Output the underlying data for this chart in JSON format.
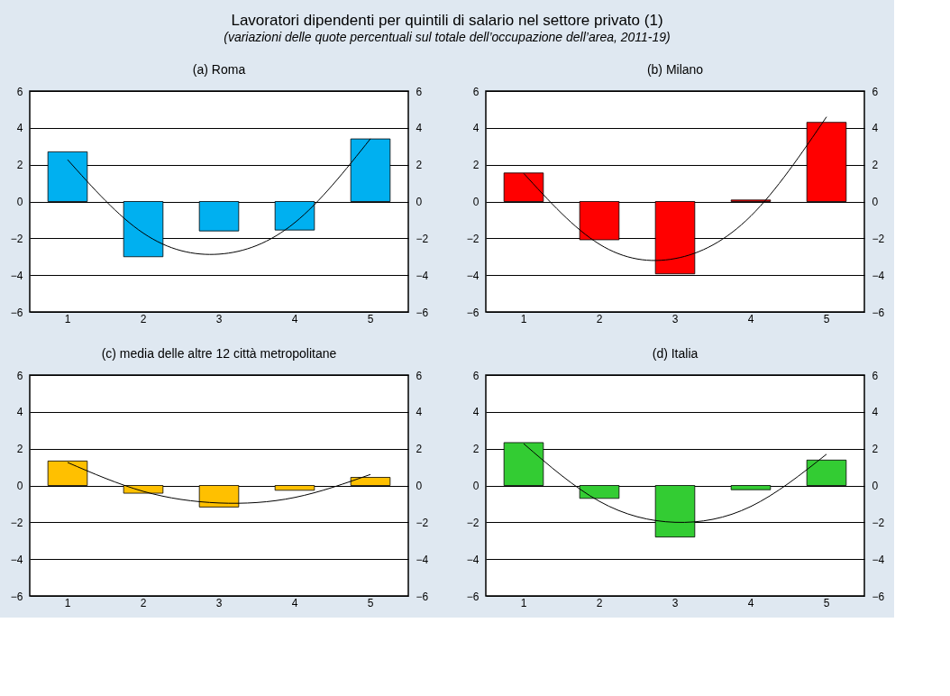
{
  "chart_data": [
    {
      "type": "other",
      "title": "Lavoratori dipendenti per quintili di salario nel settore privato (1)",
      "subtitle": "(variazioni delle quote percentuali sul totale dell’occupazione dell’area, 2011-19)"
    },
    {
      "type": "bar",
      "title": "(a) Roma",
      "categories": [
        "1",
        "2",
        "3",
        "4",
        "5"
      ],
      "ylim": [
        -6,
        6
      ],
      "yticks": [
        -6,
        -4,
        -2,
        0,
        2,
        4,
        6
      ],
      "y2lim": [
        -6,
        6
      ],
      "y2ticks": [
        -6,
        -4,
        -2,
        0,
        2,
        4,
        6
      ],
      "grid": "y",
      "series": [
        {
          "type": "bar",
          "color": "#00b0f0",
          "values": [
            2.7,
            -3.0,
            -1.6,
            -1.55,
            3.4
          ]
        },
        {
          "type": "line",
          "color": "#000000",
          "values": [
            2.27,
            -1.72,
            -2.86,
            -1.15,
            3.41
          ]
        }
      ]
    },
    {
      "type": "bar",
      "title": "(b) Milano",
      "categories": [
        "1",
        "2",
        "3",
        "4",
        "5"
      ],
      "ylim": [
        -6,
        6
      ],
      "yticks": [
        -6,
        -4,
        -2,
        0,
        2,
        4,
        6
      ],
      "y2lim": [
        -6,
        6
      ],
      "y2ticks": [
        -6,
        -4,
        -2,
        0,
        2,
        4,
        6
      ],
      "grid": "y",
      "series": [
        {
          "type": "bar",
          "color": "#ff0000",
          "values": [
            1.55,
            -2.08,
            -3.93,
            0.08,
            4.3
          ]
        },
        {
          "type": "line",
          "color": "#000000",
          "values": [
            1.53,
            -2.32,
            -3.1,
            -0.79,
            4.6
          ]
        }
      ]
    },
    {
      "type": "bar",
      "title": "(c) media delle altre 12 città metropolitane",
      "categories": [
        "1",
        "2",
        "3",
        "4",
        "5"
      ],
      "ylim": [
        -6,
        6
      ],
      "yticks": [
        -6,
        -4,
        -2,
        0,
        2,
        4,
        6
      ],
      "y2lim": [
        -6,
        6
      ],
      "y2ticks": [
        -6,
        -4,
        -2,
        0,
        2,
        4,
        6
      ],
      "grid": "y",
      "series": [
        {
          "type": "bar",
          "color": "#ffc000",
          "values": [
            1.33,
            -0.42,
            -1.17,
            -0.26,
            0.44
          ]
        },
        {
          "type": "line",
          "color": "#000000",
          "values": [
            1.25,
            -0.32,
            -0.95,
            -0.65,
            0.6
          ]
        }
      ]
    },
    {
      "type": "bar",
      "title": "(d) Italia",
      "categories": [
        "1",
        "2",
        "3",
        "4",
        "5"
      ],
      "ylim": [
        -6,
        6
      ],
      "yticks": [
        -6,
        -4,
        -2,
        0,
        2,
        4,
        6
      ],
      "y2lim": [
        -6,
        6
      ],
      "y2ticks": [
        -6,
        -4,
        -2,
        0,
        2,
        4,
        6
      ],
      "grid": "y",
      "series": [
        {
          "type": "bar",
          "color": "#33cc33",
          "values": [
            2.33,
            -0.7,
            -2.8,
            -0.23,
            1.38
          ]
        },
        {
          "type": "line",
          "color": "#000000",
          "values": [
            2.27,
            -0.86,
            -2.0,
            -1.14,
            1.7
          ]
        }
      ]
    }
  ]
}
